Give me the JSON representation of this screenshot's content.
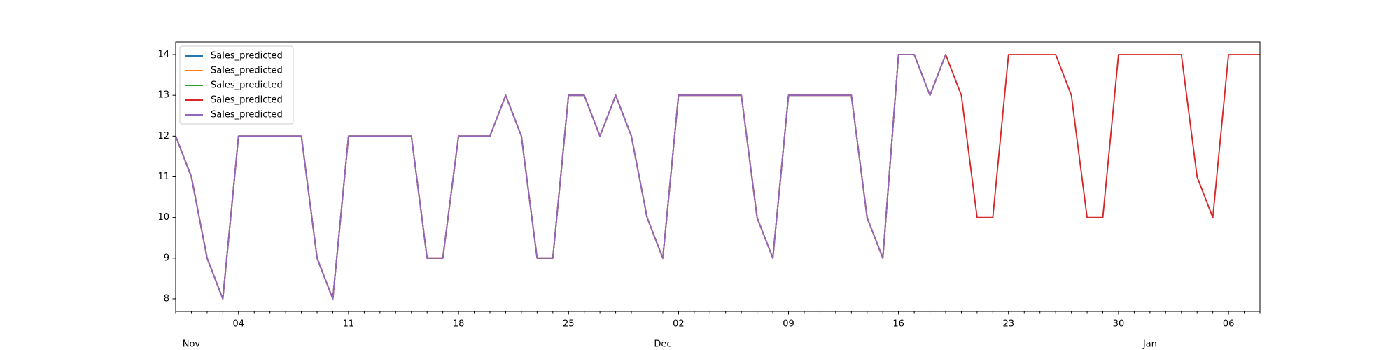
{
  "chart_data": {
    "type": "line",
    "x": [
      "10-31",
      "11-01",
      "11-02",
      "11-03",
      "11-04",
      "11-05",
      "11-06",
      "11-07",
      "11-08",
      "11-09",
      "11-10",
      "11-11",
      "11-12",
      "11-13",
      "11-14",
      "11-15",
      "11-16",
      "11-17",
      "11-18",
      "11-19",
      "11-20",
      "11-21",
      "11-22",
      "11-23",
      "11-24",
      "11-25",
      "11-26",
      "11-27",
      "11-28",
      "11-29",
      "11-30",
      "12-01",
      "12-02",
      "12-03",
      "12-04",
      "12-05",
      "12-06",
      "12-07",
      "12-08",
      "12-09",
      "12-10",
      "12-11",
      "12-12",
      "12-13",
      "12-14",
      "12-15",
      "12-16",
      "12-17",
      "12-18",
      "12-19",
      "12-20",
      "12-21",
      "12-22",
      "12-23",
      "12-24",
      "12-25",
      "12-26",
      "12-27",
      "12-28",
      "12-29",
      "12-30",
      "12-31",
      "01-01",
      "01-02",
      "01-03",
      "01-04",
      "01-05",
      "01-06",
      "01-07",
      "01-08"
    ],
    "series": [
      {
        "name": "Sales_predicted",
        "color": "#1f77b4",
        "values": [
          12,
          11,
          9,
          8,
          12,
          12,
          12,
          12,
          12,
          9,
          8,
          12,
          12,
          12,
          12,
          12,
          9,
          9,
          12,
          12,
          12,
          13,
          12,
          9,
          9,
          13,
          13,
          12,
          13,
          12,
          10,
          9,
          13,
          13,
          13,
          13,
          13,
          10,
          9,
          13,
          13,
          13,
          13,
          13,
          10,
          9,
          14,
          14,
          13,
          14,
          null,
          null,
          null,
          null,
          null,
          null,
          null,
          null,
          null,
          null,
          null,
          null,
          null,
          null,
          null,
          null,
          null,
          null,
          null,
          null
        ]
      },
      {
        "name": "Sales_predicted",
        "color": "#ff7f0e",
        "values": [
          12,
          11,
          9,
          8,
          12,
          12,
          12,
          12,
          12,
          9,
          8,
          12,
          12,
          12,
          12,
          12,
          9,
          9,
          12,
          12,
          12,
          13,
          12,
          9,
          9,
          13,
          13,
          12,
          13,
          12,
          10,
          9,
          13,
          13,
          13,
          13,
          13,
          10,
          9,
          13,
          13,
          13,
          13,
          13,
          10,
          9,
          14,
          14,
          13,
          14,
          null,
          null,
          null,
          null,
          null,
          null,
          null,
          null,
          null,
          null,
          null,
          null,
          null,
          null,
          null,
          null,
          null,
          null,
          null,
          null
        ]
      },
      {
        "name": "Sales_predicted",
        "color": "#2ca02c",
        "values": [
          12,
          11,
          9,
          8,
          12,
          12,
          12,
          12,
          12,
          9,
          8,
          12,
          12,
          12,
          12,
          12,
          9,
          9,
          12,
          12,
          12,
          13,
          12,
          9,
          9,
          13,
          13,
          12,
          13,
          12,
          10,
          9,
          13,
          13,
          13,
          13,
          13,
          10,
          9,
          13,
          13,
          13,
          13,
          13,
          10,
          9,
          14,
          14,
          13,
          14,
          null,
          null,
          null,
          null,
          null,
          null,
          null,
          null,
          null,
          null,
          null,
          null,
          null,
          null,
          null,
          null,
          null,
          null,
          null,
          null
        ]
      },
      {
        "name": "Sales_predicted",
        "color": "#d62728",
        "values": [
          12,
          11,
          9,
          8,
          12,
          12,
          12,
          12,
          12,
          9,
          8,
          12,
          12,
          12,
          12,
          12,
          9,
          9,
          12,
          12,
          12,
          13,
          12,
          9,
          9,
          13,
          13,
          12,
          13,
          12,
          10,
          9,
          13,
          13,
          13,
          13,
          13,
          10,
          9,
          13,
          13,
          13,
          13,
          13,
          10,
          9,
          14,
          14,
          13,
          14,
          13,
          10,
          10,
          14,
          14,
          14,
          14,
          13,
          10,
          10,
          14,
          14,
          14,
          14,
          14,
          11,
          10,
          14,
          14,
          14
        ]
      },
      {
        "name": "Sales_predicted",
        "color": "#9467bd",
        "values": [
          12,
          11,
          9,
          8,
          12,
          12,
          12,
          12,
          12,
          9,
          8,
          12,
          12,
          12,
          12,
          12,
          9,
          9,
          12,
          12,
          12,
          13,
          12,
          9,
          9,
          13,
          13,
          12,
          13,
          12,
          10,
          9,
          13,
          13,
          13,
          13,
          13,
          10,
          9,
          13,
          13,
          13,
          13,
          13,
          10,
          9,
          14,
          14,
          13,
          14,
          null,
          null,
          null,
          null,
          null,
          null,
          null,
          null,
          null,
          null,
          null,
          null,
          null,
          null,
          null,
          null,
          null,
          null,
          null,
          null
        ]
      }
    ],
    "xticks": [
      {
        "value": "11-04",
        "label": "04"
      },
      {
        "value": "11-11",
        "label": "11"
      },
      {
        "value": "11-18",
        "label": "18"
      },
      {
        "value": "11-25",
        "label": "25"
      },
      {
        "value": "12-02",
        "label": "02"
      },
      {
        "value": "12-09",
        "label": "09"
      },
      {
        "value": "12-16",
        "label": "16"
      },
      {
        "value": "12-23",
        "label": "23"
      },
      {
        "value": "12-30",
        "label": "30"
      },
      {
        "value": "01-06",
        "label": "06"
      }
    ],
    "month_labels": [
      {
        "value": "11-01",
        "label": "Nov"
      },
      {
        "value": "12-01",
        "label": "Dec"
      },
      {
        "value": "01-01",
        "label": "Jan"
      }
    ],
    "ylim": [
      7.69,
      14.31
    ],
    "yticks": [
      8,
      9,
      10,
      11,
      12,
      13,
      14
    ],
    "grid": false,
    "legend": "upper left"
  }
}
